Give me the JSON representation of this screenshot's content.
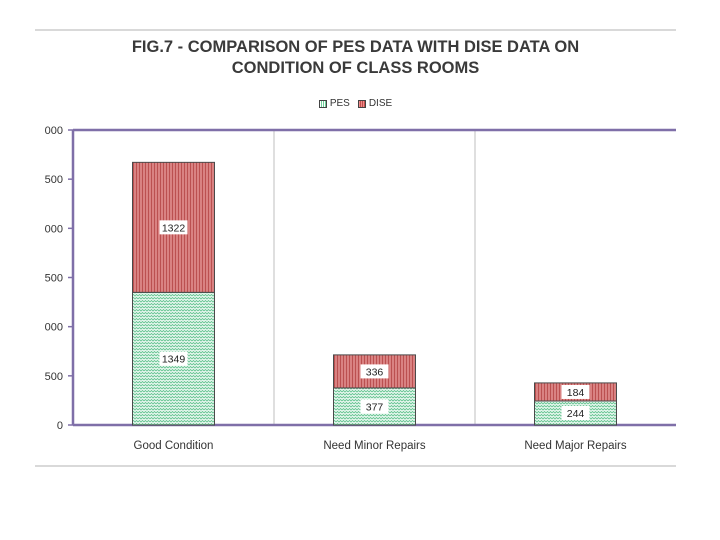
{
  "title_lines": [
    "FIG.7 - COMPARISON OF PES DATA WITH DISE DATA ON",
    "CONDITION OF CLASS ROOMS"
  ],
  "legend": [
    {
      "key": "pes",
      "label": "PES"
    },
    {
      "key": "dise",
      "label": "DISE"
    }
  ],
  "colors": {
    "pes_fill": "#e6f7ee",
    "pes_stripe": "#5cc08a",
    "dise_fill": "#d98282",
    "dise_stripe": "#b84a4a",
    "axis": "#7f6fa8",
    "grid": "#bfbfbf"
  },
  "chart_data": {
    "type": "bar",
    "stacked": true,
    "title": "FIG.7 - COMPARISON OF PES DATA WITH DISE DATA ON CONDITION OF CLASS ROOMS",
    "categories": [
      "Good Condition",
      "Need Minor Repairs",
      "Need Major Repairs"
    ],
    "series": [
      {
        "name": "PES",
        "values": [
          1349,
          377,
          244
        ]
      },
      {
        "name": "DISE",
        "values": [
          1322,
          336,
          184
        ]
      }
    ],
    "ytick_labels": [
      "0",
      "500",
      "000",
      "500",
      "000",
      "500",
      "000"
    ],
    "ylim": [
      0,
      3000
    ],
    "grid": "vertical separators",
    "legend_position": "top"
  }
}
